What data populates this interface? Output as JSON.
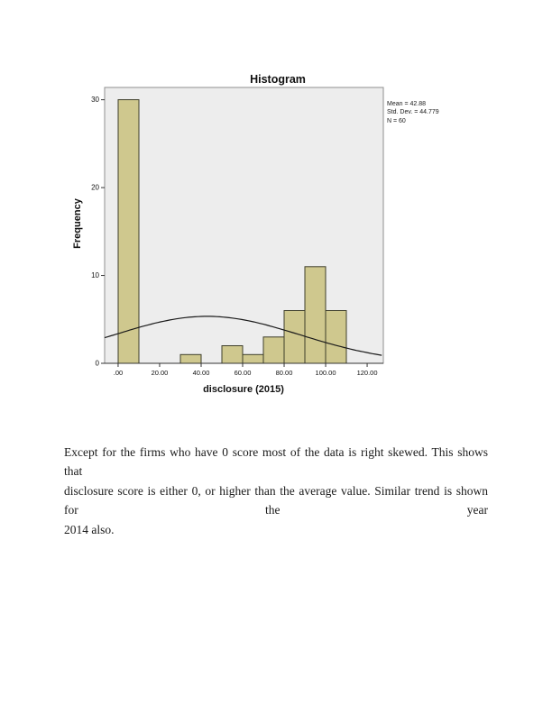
{
  "chart_data": {
    "type": "bar",
    "subtype": "histogram",
    "title": "Histogram",
    "xlabel": "disclosure (2015)",
    "ylabel": "Frequency",
    "x_ticks": [
      ".00",
      "20.00",
      "40.00",
      "60.00",
      "80.00",
      "100.00",
      "120.00"
    ],
    "x_tick_values": [
      0,
      20,
      40,
      60,
      80,
      100,
      120
    ],
    "y_ticks": [
      0,
      10,
      20,
      30
    ],
    "xlim": [
      -6.5,
      127.8
    ],
    "ylim": [
      0,
      31.4
    ],
    "bin_width": 10,
    "bins": [
      {
        "start": 0,
        "count": 30
      },
      {
        "start": 30,
        "count": 1
      },
      {
        "start": 50,
        "count": 2
      },
      {
        "start": 60,
        "count": 1
      },
      {
        "start": 70,
        "count": 3
      },
      {
        "start": 80,
        "count": 6
      },
      {
        "start": 90,
        "count": 11
      },
      {
        "start": 100,
        "count": 6
      }
    ],
    "normal_curve": {
      "mean": 42.88,
      "sd": 44.779,
      "n": 60
    },
    "stats_legend": [
      "Mean = 42.88",
      "Std. Dev. = 44.779",
      "N = 60"
    ],
    "legend_position": "top-right-outside",
    "grid": false,
    "colors": {
      "bar_fill": "#cfc88e",
      "bar_stroke": "#3e3e2a",
      "plot_bg": "#ededed",
      "plot_border": "#8f8f8f",
      "curve": "#1a1a1a",
      "axis": "#333333"
    }
  },
  "paragraph": {
    "lines": [
      "Except for the firms who have 0 score most of the data is right skewed. This shows that",
      "disclosure score is either 0, or higher than the average value. Similar trend is shown for the year",
      "2014 also."
    ],
    "text": "Except for the firms who have 0 score most of the data is right skewed. This shows that disclosure score is either 0, or higher than the average value. Similar trend is shown for the year 2014 also."
  }
}
